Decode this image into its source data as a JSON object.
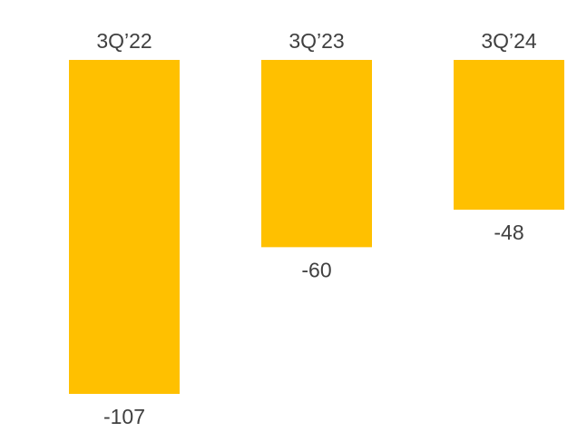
{
  "chart_data": {
    "type": "bar",
    "categories": [
      "3Q’22",
      "3Q’23",
      "3Q’24"
    ],
    "values": [
      -107,
      -60,
      -48
    ],
    "data_labels": [
      "-107",
      "-60",
      "-48"
    ],
    "ylim": [
      -107,
      0
    ],
    "grid": false,
    "legend": "none",
    "bar_color": "#FFC000"
  }
}
